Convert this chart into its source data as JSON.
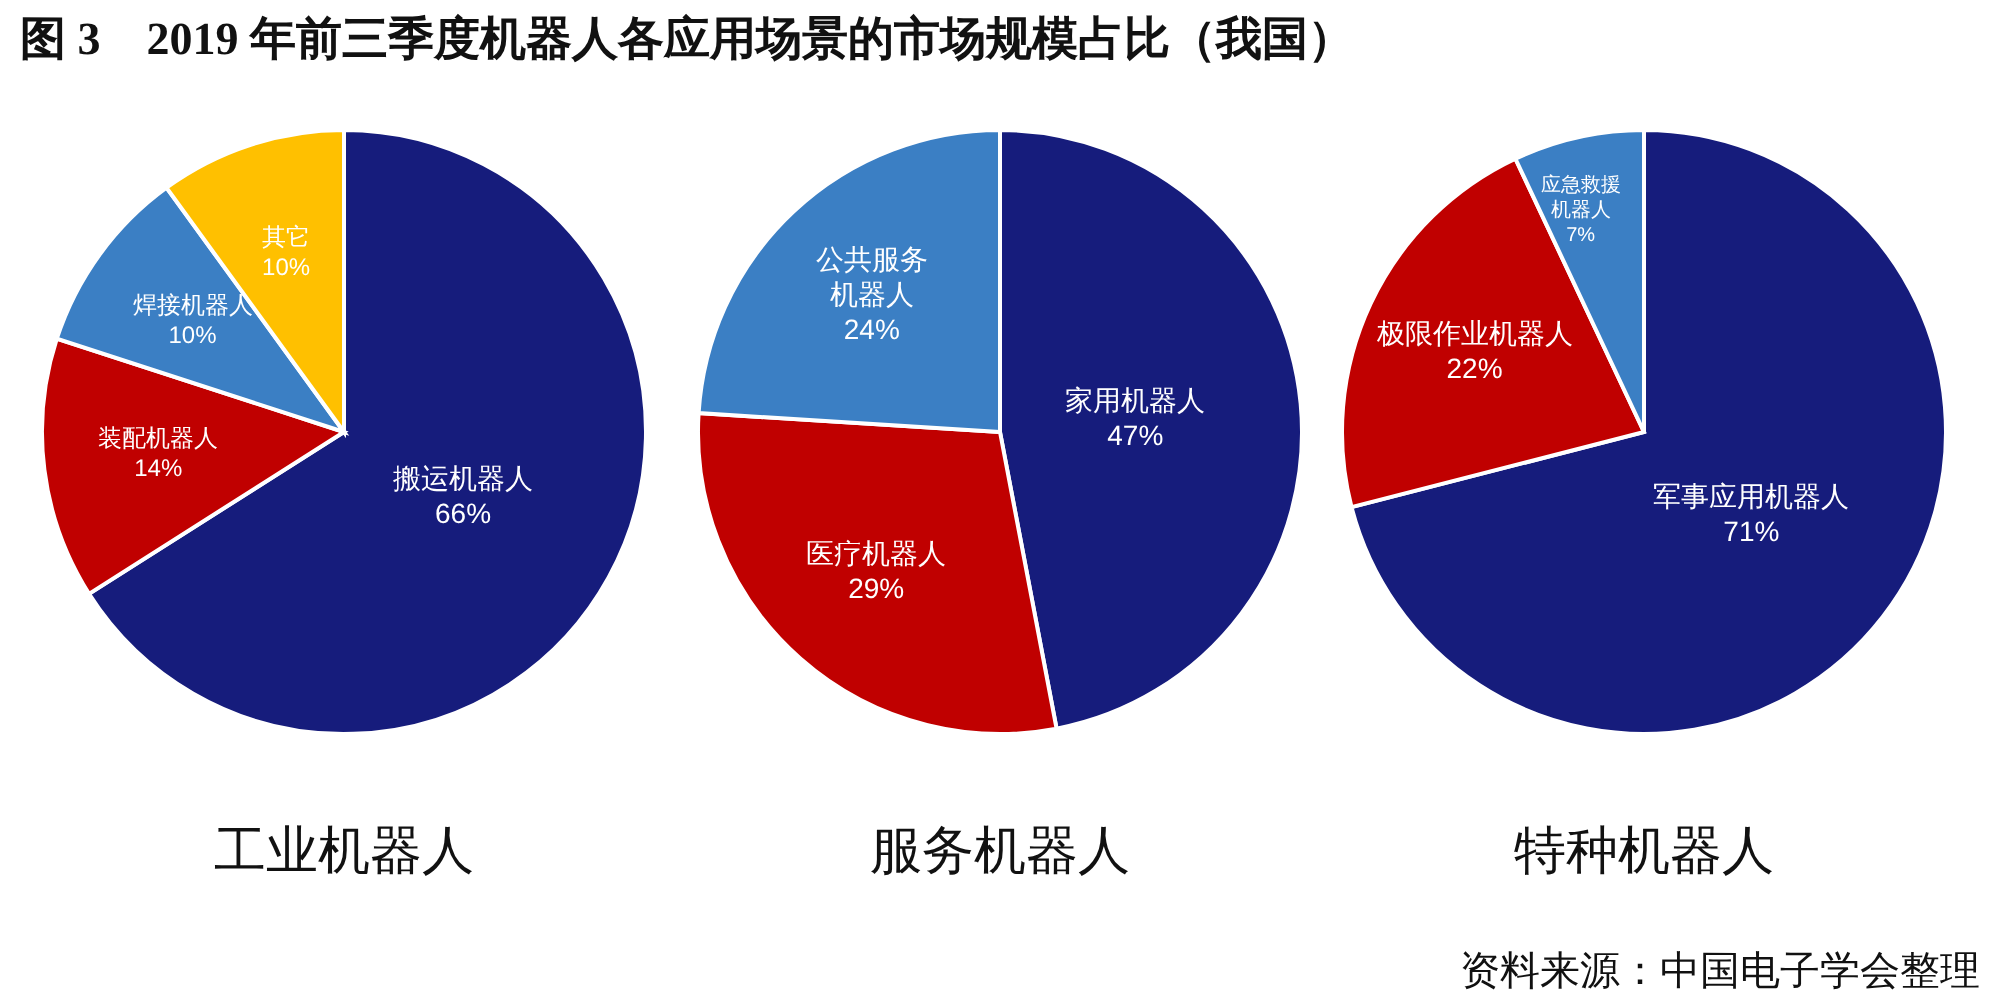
{
  "chart_data": [
    {
      "type": "pie",
      "title": "工业机器人",
      "annotations": [
        "图 3　2019 年前三季度机器人各应用场景的市场规模占比（我国）"
      ],
      "categories": [
        "搬运机器人",
        "装配机器人",
        "焊接机器人",
        "其它"
      ],
      "values": [
        66,
        14,
        10,
        10
      ],
      "value_labels": [
        "66%",
        "14%",
        "10%",
        "10%"
      ],
      "colors": [
        "#161c7c",
        "#c00000",
        "#3b7fc4",
        "#ffc000"
      ]
    },
    {
      "type": "pie",
      "title": "服务机器人",
      "categories": [
        "家用机器人",
        "医疗机器人",
        "公共服务机器人"
      ],
      "values": [
        47,
        29,
        24
      ],
      "value_labels": [
        "47%",
        "29%",
        "24%"
      ],
      "colors": [
        "#161c7c",
        "#c00000",
        "#3b7fc4"
      ]
    },
    {
      "type": "pie",
      "title": "特种机器人",
      "annotations": [
        "资料来源：中国电子学会整理"
      ],
      "categories": [
        "军事应用机器人",
        "极限作业机器人",
        "应急救援机器人"
      ],
      "values": [
        71,
        22,
        7
      ],
      "value_labels": [
        "71%",
        "22%",
        "7%"
      ],
      "colors": [
        "#161c7c",
        "#c00000",
        "#3b7fc4"
      ]
    }
  ]
}
